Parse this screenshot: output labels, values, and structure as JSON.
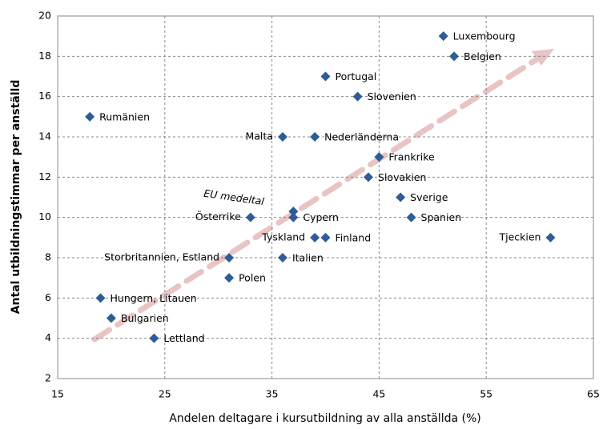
{
  "chart_data": {
    "type": "scatter",
    "xlabel": "Andelen deltagare i kursutbildning av alla anställda  (%)",
    "ylabel": "Antal utbildningstimmar per anställd",
    "labels": [
      "Luxembourg",
      "Belgien",
      "Portugal",
      "Slovenien",
      "Rumänien",
      "Malta",
      "Nederländerna",
      "Frankrike",
      "Slovakien",
      "Sverige",
      "EU medeltal",
      "Österrike",
      "Cypern",
      "Spanien",
      "Tyskland",
      "Finland",
      "Tjeckien",
      "Storbritannien, Estland",
      "Italien",
      "Polen",
      "Hungern, Litauen",
      "Bulgarien",
      "Lettland"
    ],
    "x": [
      51,
      52,
      40,
      43,
      18,
      36,
      39,
      45,
      44,
      47,
      37,
      33,
      37,
      48,
      39,
      40,
      61,
      31,
      36,
      31,
      19,
      20,
      24
    ],
    "values": [
      19,
      18,
      17,
      16,
      15,
      14,
      14,
      13,
      12,
      11,
      10.3,
      10,
      10,
      10,
      9,
      9,
      9,
      8,
      8,
      7,
      6,
      5,
      4
    ],
    "color": "#2e5c99",
    "xlim": [
      15,
      65
    ],
    "xticks": [
      15,
      25,
      35,
      45,
      55,
      65
    ],
    "ylim": [
      2,
      20
    ],
    "yticks": [
      2,
      4,
      6,
      8,
      10,
      12,
      14,
      16,
      18,
      20
    ],
    "grid": true
  }
}
